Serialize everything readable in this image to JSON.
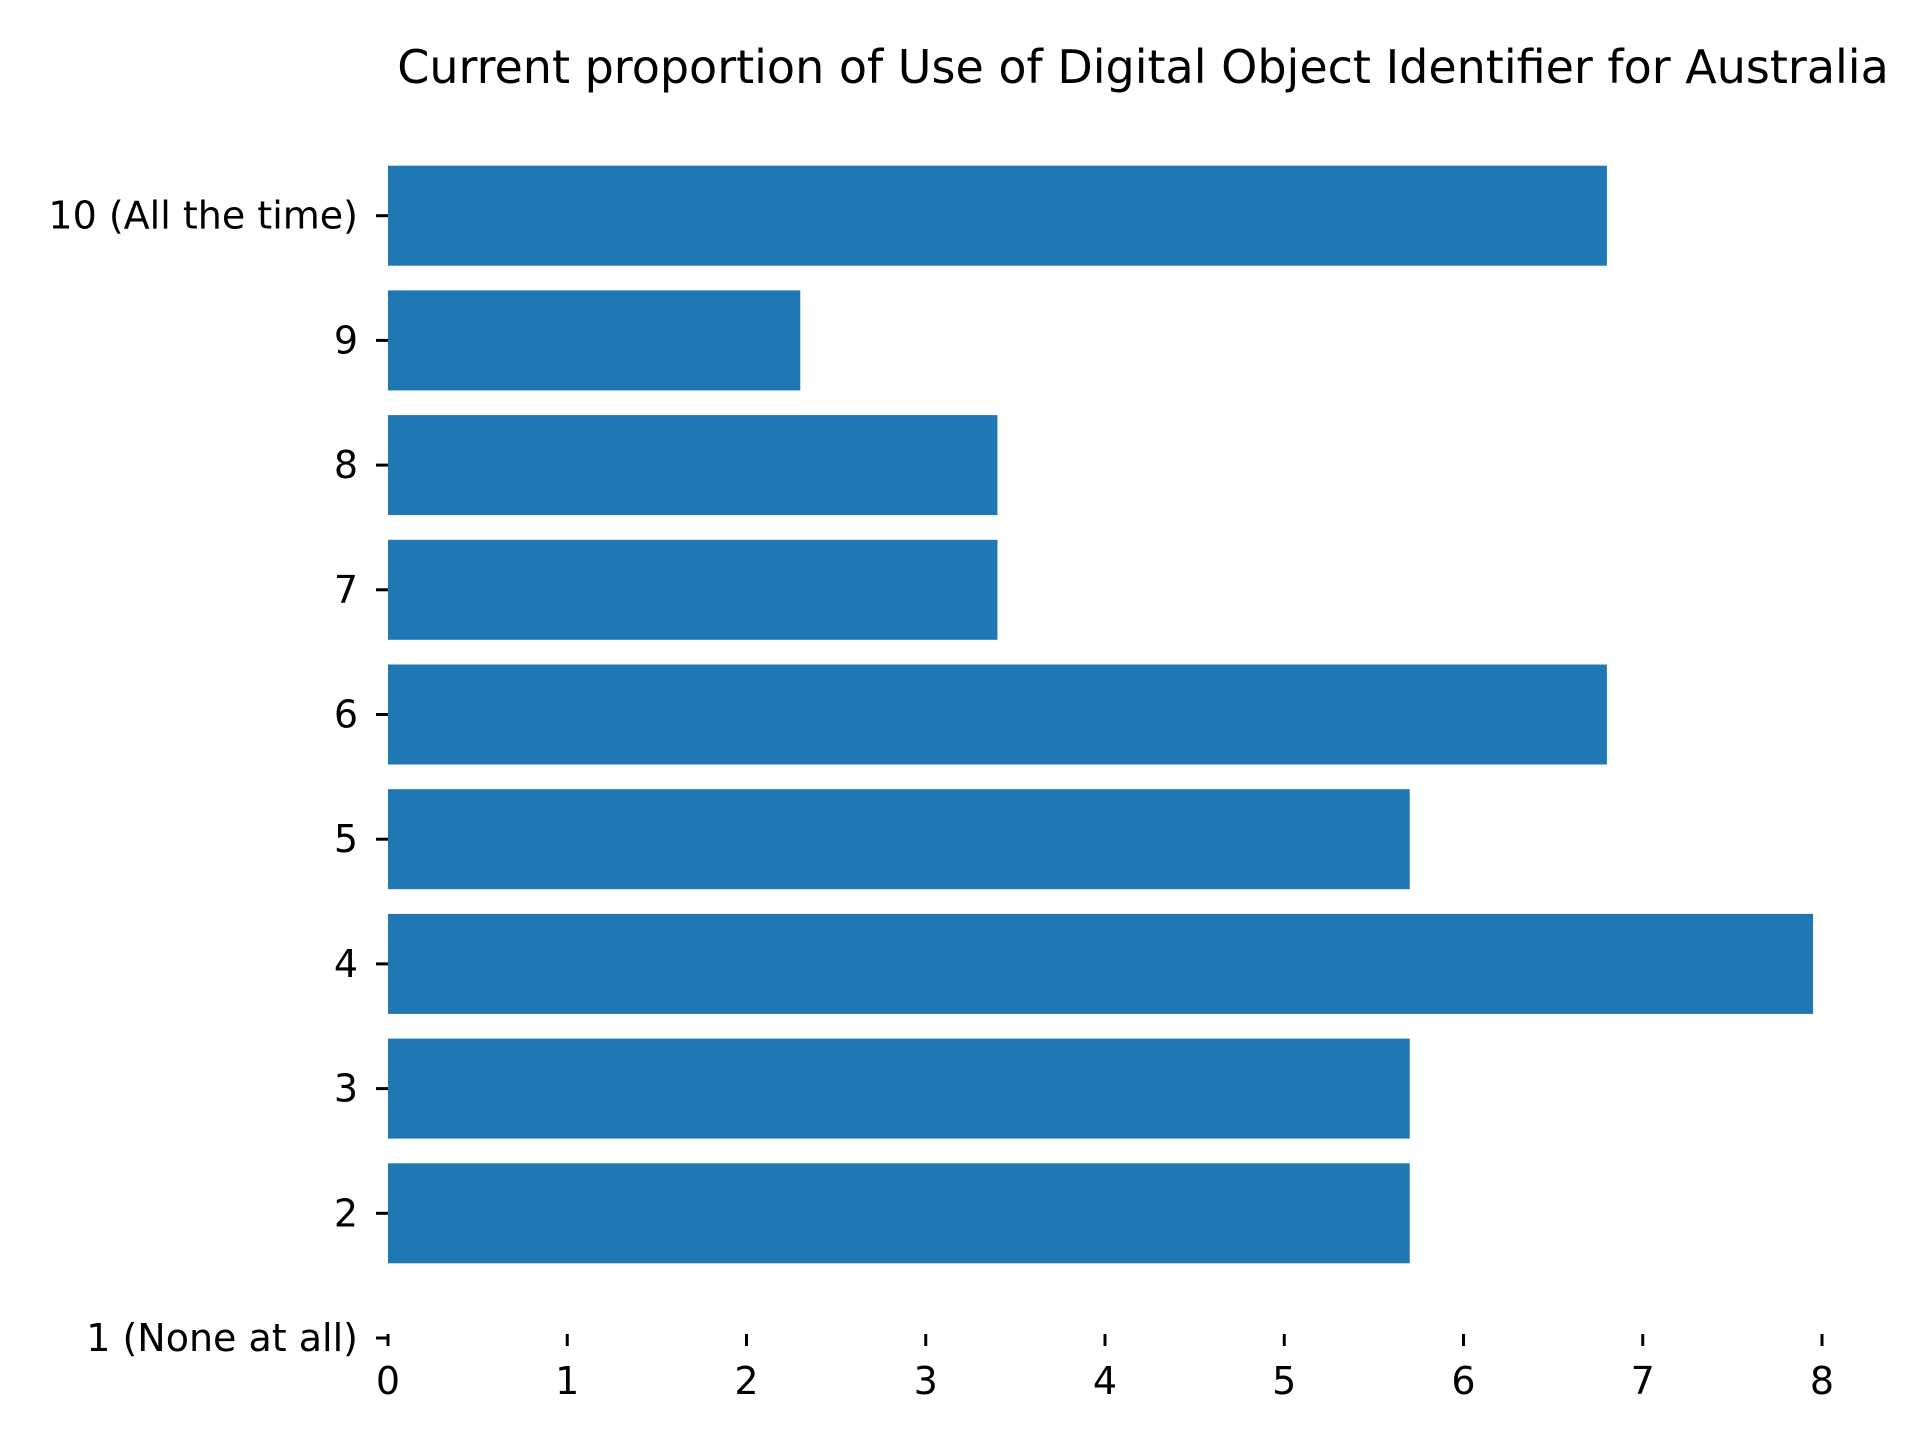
{
  "chart_data": {
    "type": "bar",
    "orientation": "horizontal",
    "title": "Current proportion of Use of Digital Object Identifier for Australia",
    "xlabel": "",
    "ylabel": "",
    "categories": [
      "1 (None at all)",
      "2",
      "3",
      "4",
      "5",
      "6",
      "7",
      "8",
      "9",
      "10 (All the time)"
    ],
    "values": [
      0,
      5.7,
      5.7,
      7.95,
      5.7,
      6.8,
      3.4,
      3.4,
      2.3,
      6.8
    ],
    "xlim": [
      0,
      8
    ],
    "xticks": [
      0,
      1,
      2,
      3,
      4,
      5,
      6,
      7,
      8
    ],
    "grid": false,
    "bar_color": "#1f77b4"
  }
}
